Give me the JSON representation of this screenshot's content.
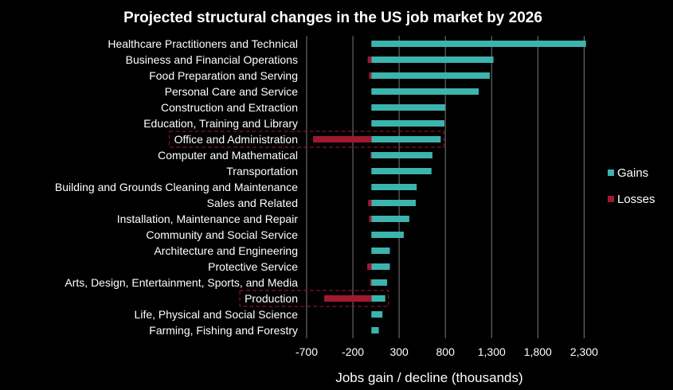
{
  "chart_data": {
    "type": "bar",
    "orientation": "horizontal",
    "title": "Projected structural changes in the US job market by 2026",
    "xlabel": "Jobs gain / decline (thousands)",
    "ylabel": "",
    "xlim": [
      -700,
      2400
    ],
    "xticks": [
      -700,
      -200,
      300,
      800,
      1300,
      1800,
      2300
    ],
    "xtick_labels": [
      "-700",
      "-200",
      "300",
      "800",
      "1,300",
      "1,800",
      "2,300"
    ],
    "grid": "vertical",
    "legend_position": "right",
    "categories": [
      "Healthcare Practitioners and Technical",
      "Business and Financial Operations",
      "Food Preparation and Serving",
      "Personal Care and Service",
      "Construction and Extraction",
      "Education, Training and Library",
      "Office and Administration",
      "Computer and Mathematical",
      "Transportation",
      "Building and Grounds Cleaning and Maintenance",
      "Sales and Related",
      "Installation, Maintenance and Repair",
      "Community and Social Service",
      "Architecture and Engineering",
      "Protective Service",
      "Arts, Design, Entertainment, Sports, and Media",
      "Production",
      "Life, Physical and Social Science",
      "Farming, Fishing and Forestry"
    ],
    "highlighted": [
      "Office and Administration",
      "Production"
    ],
    "series": [
      {
        "name": "Gains",
        "color": "#3cb4ad",
        "values": [
          2320,
          1320,
          1280,
          1160,
          800,
          790,
          750,
          660,
          650,
          490,
          480,
          410,
          350,
          200,
          200,
          170,
          150,
          120,
          80
        ]
      },
      {
        "name": "Losses",
        "color": "#a0192f",
        "values": [
          0,
          -40,
          -25,
          0,
          0,
          0,
          -630,
          -10,
          0,
          0,
          -35,
          -25,
          0,
          0,
          -45,
          -15,
          -510,
          0,
          0
        ]
      }
    ]
  }
}
